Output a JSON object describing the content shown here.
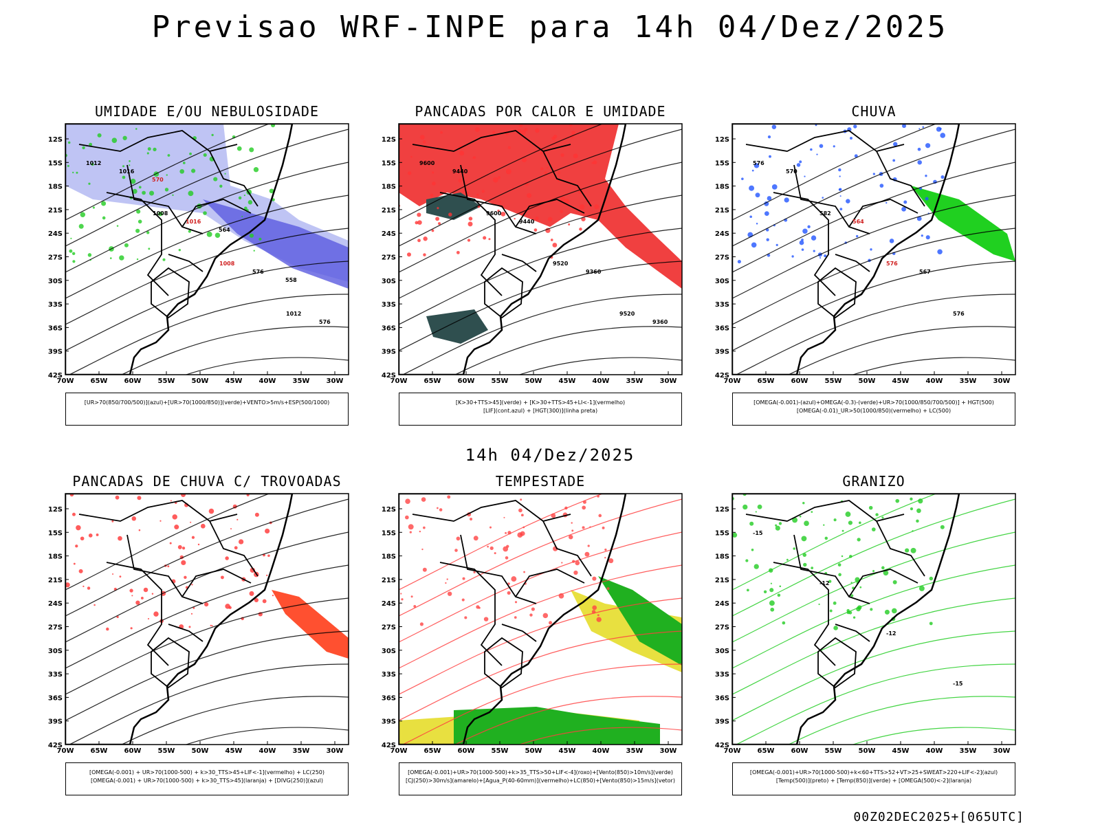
{
  "title": "Previsao WRF-INPE  para 14h 04/Dez/2025",
  "mid_title": "14h 04/Dez/2025",
  "footer": "00Z02DEC2025+[065UTC]",
  "lat_ticks": [
    "12S",
    "15S",
    "18S",
    "21S",
    "24S",
    "27S",
    "30S",
    "33S",
    "36S",
    "39S",
    "42S"
  ],
  "lon_ticks": [
    "70W",
    "65W",
    "60W",
    "55W",
    "50W",
    "45W",
    "40W",
    "35W",
    "30W"
  ],
  "panels": [
    {
      "title": "UMIDADE E/OU NEBULOSIDADE",
      "legend": [
        "[UR>70(850/700/500)](azul)+[UR>70(1000/850)](verde)+VENTO>5m/s+ESP(500/1000)"
      ],
      "labels": [
        "1012",
        "1008",
        "1008",
        "1012",
        "1016",
        "1016",
        "576",
        "576",
        "570",
        "564",
        "558"
      ]
    },
    {
      "title": "PANCADAS POR CALOR E UMIDADE",
      "legend": [
        "[K>30+TTS>45](verde) + [K>30+TTS>45+LI<-1](vermelho)",
        "[LIF](cont.azul) + [HGT(300)](linha preta)"
      ],
      "labels": [
        "9600",
        "9600",
        "9520",
        "9520",
        "9440",
        "9440",
        "9360",
        "9360"
      ]
    },
    {
      "title": "CHUVA",
      "legend": [
        "[OMEGA(-0.001)-(azul)+OMEGA(-0.3)-(verde)+UR>70(1000/850/700/500)] + HGT(500)",
        "[OMEGA(-0.01)_UR>50(1000/850)(vermelho) + LC(500)"
      ],
      "labels": [
        "576",
        "582",
        "576",
        "576",
        "570",
        "564",
        "567"
      ]
    },
    {
      "title": "PANCADAS DE CHUVA C/ TROVOADAS",
      "legend": [
        "[OMEGA(-0.001) + UR>70(1000-500) + k>30_TTS>45+LIF<-1](vermelho) + LC(250)",
        "[OMEGA(-0.001) + UR>70(1000-500) + k>30_TTS>45](laranja) + [DIVG(250)](azul)"
      ],
      "labels": []
    },
    {
      "title": "TEMPESTADE",
      "legend": [
        "[OMEGA(-0.001)+UR>70(1000-500)+k>35_TTS>50+LIF<-4](roxo)+[Vento(850)>10m/s](verde)",
        "[CJ(250)>30m/s](amarelo)+[Agua_P(40-60mm)](vermelho)+LC(850)+[Vento(850)>15m/s](vetor)"
      ],
      "labels": []
    },
    {
      "title": "GRANIZO",
      "legend": [
        "[OMEGA(-0.001)+UR>70(1000-500)+k<60+TTS>52+VT>25+SWEAT>220+LIF<-2](azul)",
        "[Temp(500)](preto) + [Temp(850)](verde) + [OMEGA(500)<-2](laranja)"
      ],
      "labels": [
        "-15",
        "-12",
        "-12",
        "-15"
      ]
    }
  ]
}
